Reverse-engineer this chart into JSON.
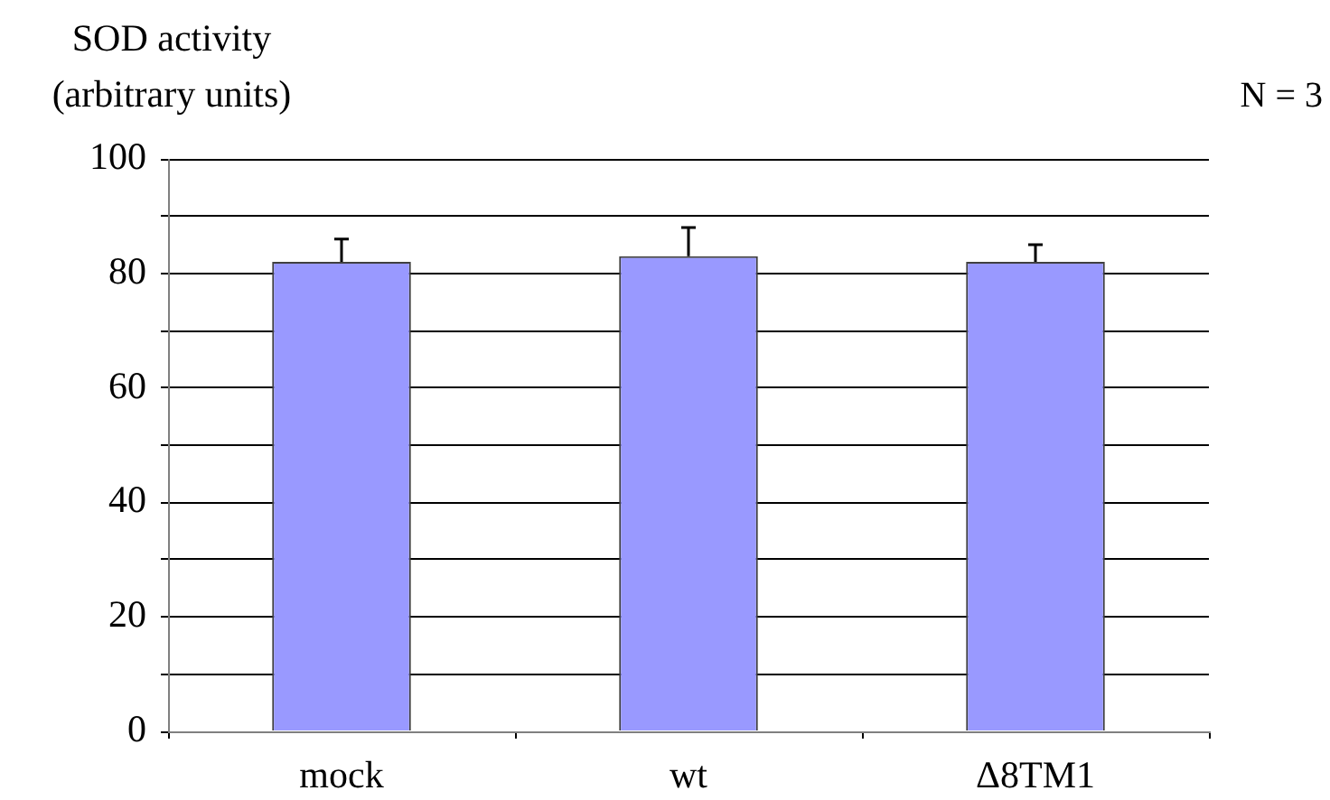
{
  "chart_data": {
    "type": "bar",
    "ylabel": "SOD activity (arbitrary units)",
    "annotations": [
      "N = 3"
    ],
    "categories": [
      "mock",
      "wt",
      "Δ8TM1"
    ],
    "values": [
      82,
      83,
      82
    ],
    "color": "#9999ff",
    "errors": [
      [
        82,
        86
      ],
      [
        83,
        88
      ],
      [
        82,
        85
      ]
    ],
    "ylim": [
      0,
      100
    ],
    "yticks": [
      0,
      {
        "value": 10,
        "label": null
      },
      20,
      {
        "value": 30,
        "label": null
      },
      40,
      {
        "value": 50,
        "label": null
      },
      60,
      {
        "value": 70,
        "label": null
      },
      80,
      {
        "value": 90,
        "label": null
      },
      100
    ],
    "grid": "y"
  }
}
